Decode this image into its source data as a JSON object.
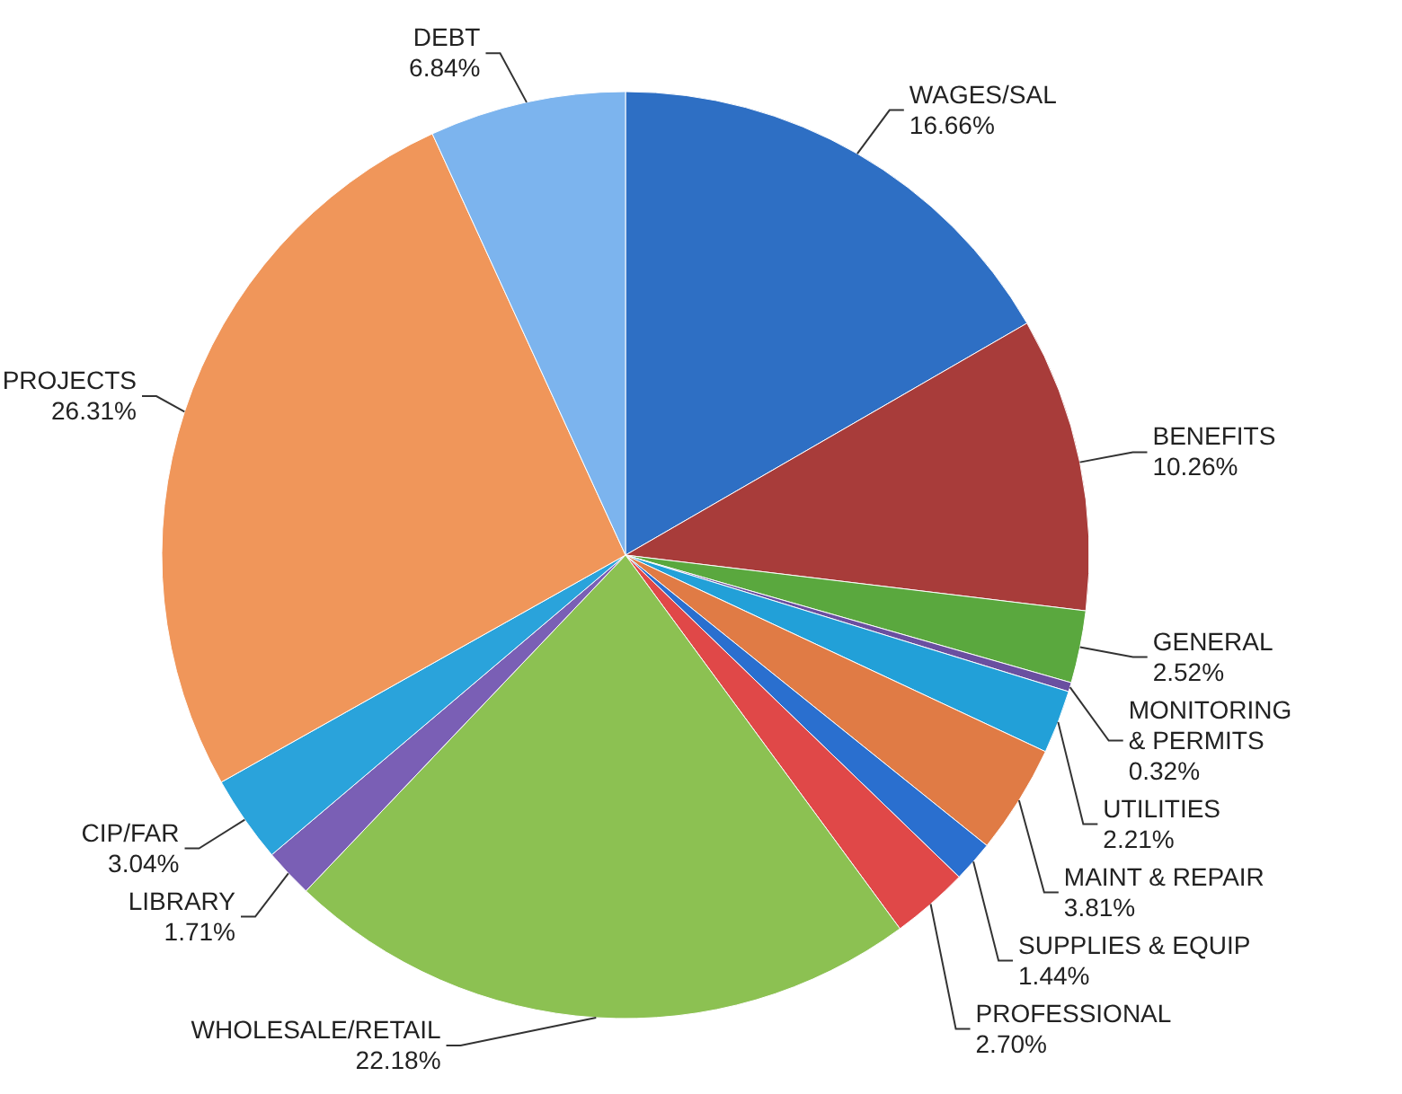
{
  "chart_data": {
    "type": "pie",
    "categories": [
      "WAGES/SAL",
      "BENEFITS",
      "GENERAL",
      "MONITORING & PERMITS",
      "UTILITIES",
      "MAINT & REPAIR",
      "SUPPLIES & EQUIP",
      "PROFESSIONAL",
      "WHOLESALE/RETAIL",
      "LIBRARY",
      "CIP/FAR",
      "PROJECTS",
      "DEBT"
    ],
    "values": [
      16.66,
      10.26,
      2.52,
      0.32,
      2.21,
      3.81,
      1.44,
      2.7,
      22.18,
      1.71,
      3.04,
      26.31,
      6.84
    ],
    "value_labels": [
      "16.66%",
      "10.26%",
      "2.52%",
      "0.32%",
      "2.21%",
      "3.81%",
      "1.44%",
      "2.70%",
      "22.18%",
      "1.71%",
      "3.04%",
      "26.31%",
      "6.84%"
    ],
    "colors": [
      "#2e6fc4",
      "#a83c3a",
      "#5aa83e",
      "#6a4fa0",
      "#22a0d8",
      "#e07b45",
      "#2a6fcf",
      "#e04848",
      "#8cc152",
      "#7a5fb5",
      "#2aa3db",
      "#f0965a",
      "#7cb4ee"
    ]
  }
}
